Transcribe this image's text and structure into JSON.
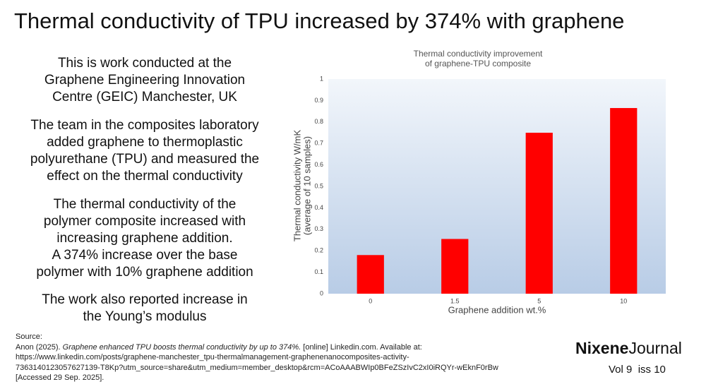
{
  "header": {
    "title": "Thermal conductivity of TPU increased by 374% with graphene"
  },
  "paragraphs": [
    [
      "This is work conducted at the",
      "Graphene Engineering Innovation",
      "Centre (GEIC) Manchester, UK"
    ],
    [
      "The team in the composites laboratory",
      "added graphene to thermoplastic",
      "polyurethane (TPU) and measured the",
      "effect on the thermal conductivity"
    ],
    [
      "The thermal conductivity of the",
      "polymer composite increased with",
      "increasing graphene addition.",
      "A 374% increase over the base",
      "polymer with 10% graphene addition"
    ],
    [
      "The work also reported increase in",
      "the Young’s modulus"
    ]
  ],
  "chart_data": {
    "type": "bar",
    "title": [
      "Thermal conductivity improvement",
      "of graphene-TPU composite"
    ],
    "x_label": "Graphene addition wt.%",
    "y_label": [
      "Thermal conductivity W/mK",
      "(average of 10 samples)"
    ],
    "categories": [
      "0",
      "1.5",
      "5",
      "10"
    ],
    "values": [
      0.18,
      0.255,
      0.75,
      0.865
    ],
    "color": "#ff0000",
    "ylim": [
      0,
      1
    ],
    "yticks": [
      0,
      0.1,
      0.2,
      0.3,
      0.4,
      0.5,
      0.6,
      0.7,
      0.8,
      0.9,
      1
    ],
    "grid": false
  },
  "source": {
    "label": "Source:",
    "author": "Anon (2025).",
    "title": "Graphene enhanced TPU boosts thermal conductivity by up to 374%.",
    "rest": "[online] Linkedin.com. Available at:",
    "url_lines": [
      "https://www.linkedin.com/posts/graphene-manchester_tpu-thermalmanagement-graphenenanocomposites-activity-",
      "7363140123057627139-T8Kp?utm_source=share&utm_medium=member_desktop&rcm=ACoAAABWIp0BFeZSzIvC2xI0iRQYr-wEknF0rBw"
    ],
    "accessed": "[Accessed 29 Sep. 2025]."
  },
  "brand": {
    "name_bold": "Nixene",
    "name_rest": "Journal",
    "issue": "Vol 9  iss 10"
  }
}
